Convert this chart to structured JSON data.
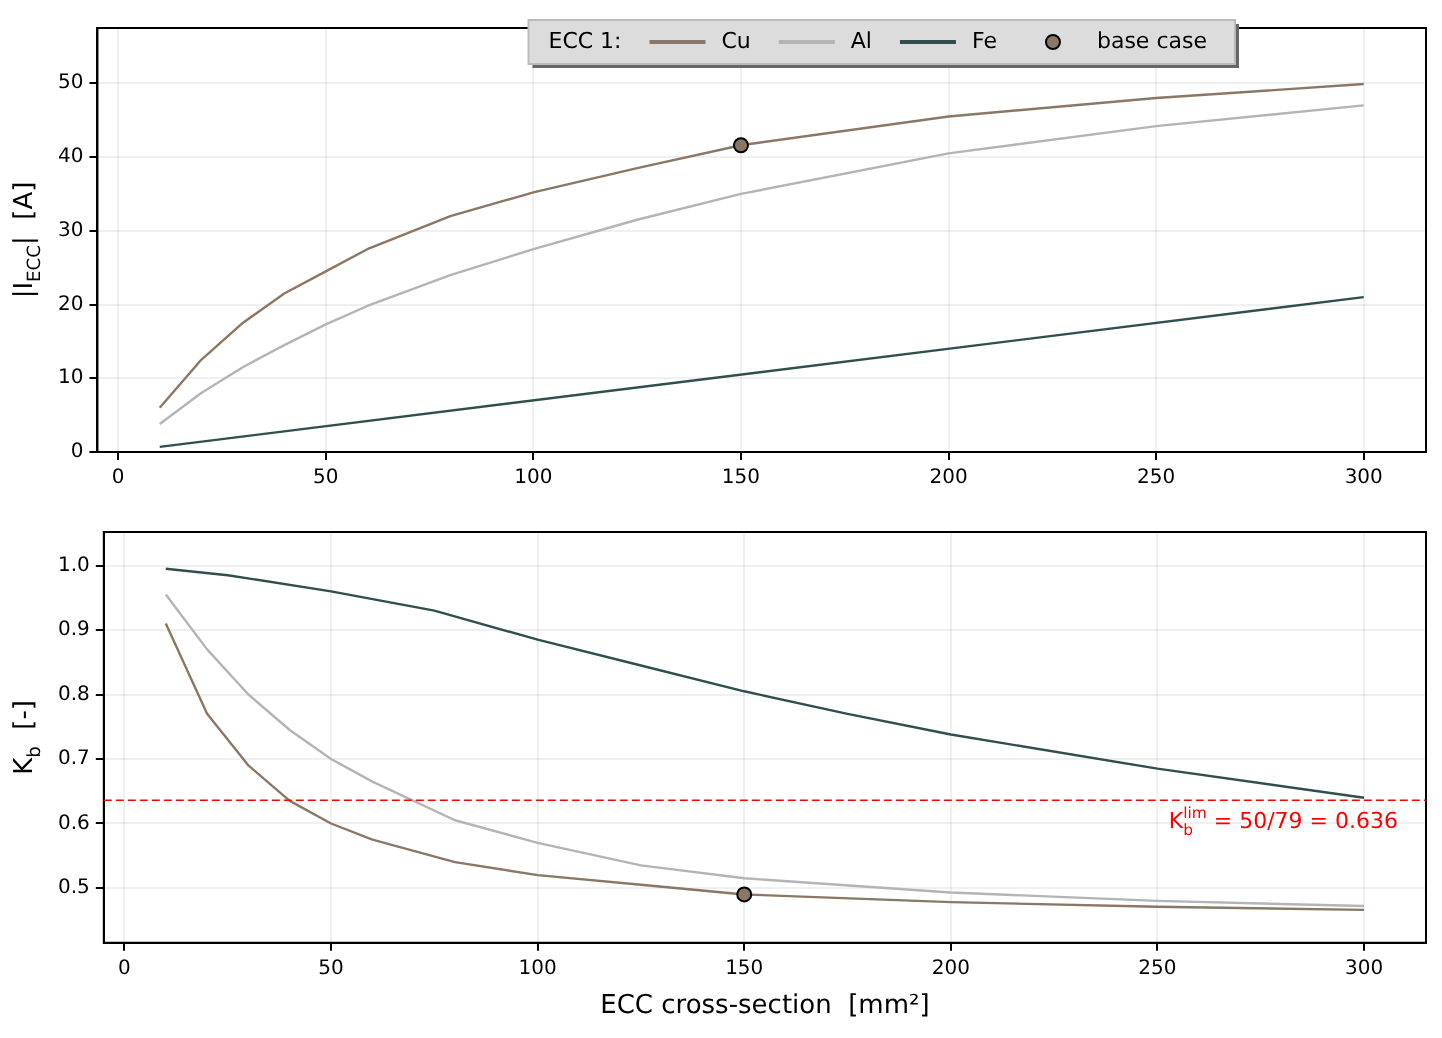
{
  "chart_data": [
    {
      "type": "line",
      "ylabel": "|I$_{ECC}$|  [A]",
      "legend": "top",
      "legend_title": "ECC 1:",
      "grid": true,
      "xlim": [
        -5,
        315
      ],
      "xticks": [
        0,
        50,
        100,
        150,
        200,
        250,
        300
      ],
      "ylim": [
        0,
        57.5
      ],
      "yticks": [
        0,
        10,
        20,
        30,
        40,
        50
      ],
      "series": [
        {
          "name": "Cu",
          "type": "line",
          "color": "#8b7765",
          "x": [
            10,
            20,
            30,
            40,
            50,
            60,
            80,
            100,
            125,
            150,
            200,
            250,
            300
          ],
          "values": [
            6,
            12.5,
            17.5,
            21.5,
            24.5,
            27.5,
            32,
            35.2,
            38.5,
            41.6,
            45.5,
            48,
            49.9
          ]
        },
        {
          "name": "Al",
          "type": "line",
          "color": "#b4b4b4",
          "x": [
            10,
            20,
            30,
            40,
            50,
            60,
            80,
            100,
            125,
            150,
            200,
            250,
            300
          ],
          "values": [
            3.8,
            8,
            11.5,
            14.5,
            17.3,
            19.8,
            24,
            27.5,
            31.5,
            35,
            40.5,
            44.2,
            47
          ]
        },
        {
          "name": "Fe",
          "type": "line",
          "color": "#2f4f4f",
          "x": [
            10,
            300
          ],
          "values": [
            0.7,
            21
          ]
        },
        {
          "name": "base case",
          "type": "scatter",
          "marker": "circle",
          "color": "#8b7765",
          "x": [
            150
          ],
          "values": [
            41.6
          ]
        }
      ]
    },
    {
      "type": "line",
      "xlabel": "ECC cross-section  [mm²]",
      "ylabel": "K$_{b}$  [-]",
      "grid": true,
      "legend": false,
      "xlim": [
        -5,
        315
      ],
      "xticks": [
        0,
        50,
        100,
        150,
        200,
        250,
        300
      ],
      "ylim": [
        0.415,
        1.052
      ],
      "yticks": [
        {
          "value": 0.5,
          "label": "0.5"
        },
        {
          "value": 0.6,
          "label": "0.6"
        },
        {
          "value": 0.7,
          "label": "0.7"
        },
        {
          "value": 0.8,
          "label": "0.8"
        },
        {
          "value": 0.9,
          "label": "0.9"
        },
        {
          "value": 1,
          "label": "1.0"
        }
      ],
      "ref_lines": [
        {
          "axis": "y",
          "value": 0.636,
          "label": "K$_{b}$$^{lim}$ = 50/79 = 0.636",
          "color": "#ff0000",
          "line_style": "dashed"
        }
      ],
      "series": [
        {
          "type": "line",
          "color": "#8b7765",
          "x": [
            10,
            20,
            30,
            40,
            50,
            60,
            80,
            100,
            125,
            150,
            200,
            250,
            300
          ],
          "values": [
            0.91,
            0.77,
            0.69,
            0.635,
            0.6,
            0.575,
            0.54,
            0.52,
            0.505,
            0.49,
            0.478,
            0.471,
            0.466
          ]
        },
        {
          "type": "line",
          "color": "#b4b4b4",
          "x": [
            10,
            20,
            30,
            40,
            50,
            60,
            80,
            100,
            125,
            150,
            200,
            250,
            300
          ],
          "values": [
            0.955,
            0.87,
            0.8,
            0.745,
            0.7,
            0.665,
            0.605,
            0.57,
            0.535,
            0.515,
            0.493,
            0.48,
            0.472
          ]
        },
        {
          "type": "line",
          "color": "#2f4f4f",
          "x": [
            10,
            25,
            50,
            75,
            100,
            125,
            150,
            175,
            200,
            250,
            300
          ],
          "values": [
            0.995,
            0.985,
            0.96,
            0.93,
            0.885,
            0.845,
            0.805,
            0.77,
            0.738,
            0.685,
            0.64
          ]
        },
        {
          "type": "scatter",
          "marker": "circle",
          "color": "#8b7765",
          "x": [
            150
          ],
          "values": [
            0.49
          ]
        }
      ]
    }
  ]
}
